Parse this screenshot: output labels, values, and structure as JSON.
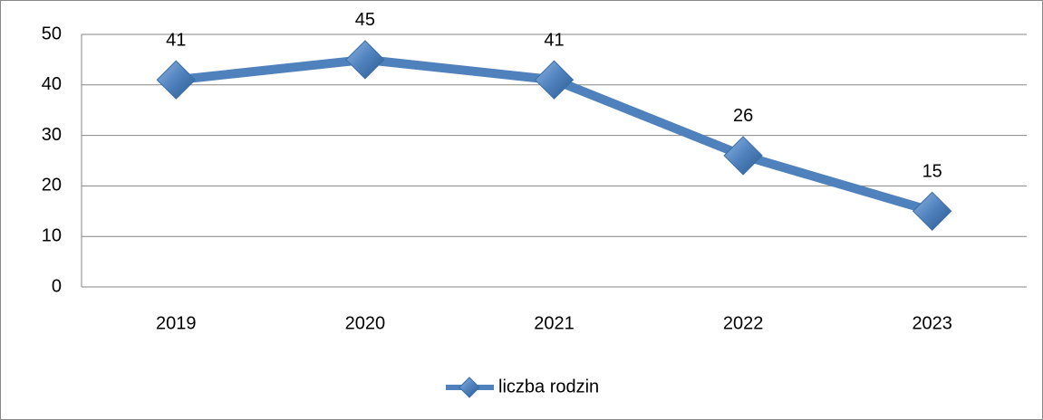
{
  "chart_data": {
    "type": "line",
    "categories": [
      "2019",
      "2020",
      "2021",
      "2022",
      "2023"
    ],
    "series": [
      {
        "name": "liczba rodzin",
        "color": "#4f81bd",
        "values": [
          41,
          45,
          41,
          26,
          15
        ]
      }
    ],
    "ylim": [
      0,
      50
    ],
    "yticks": [
      0,
      10,
      20,
      30,
      40,
      50
    ],
    "grid": true,
    "legend": "bottom"
  }
}
